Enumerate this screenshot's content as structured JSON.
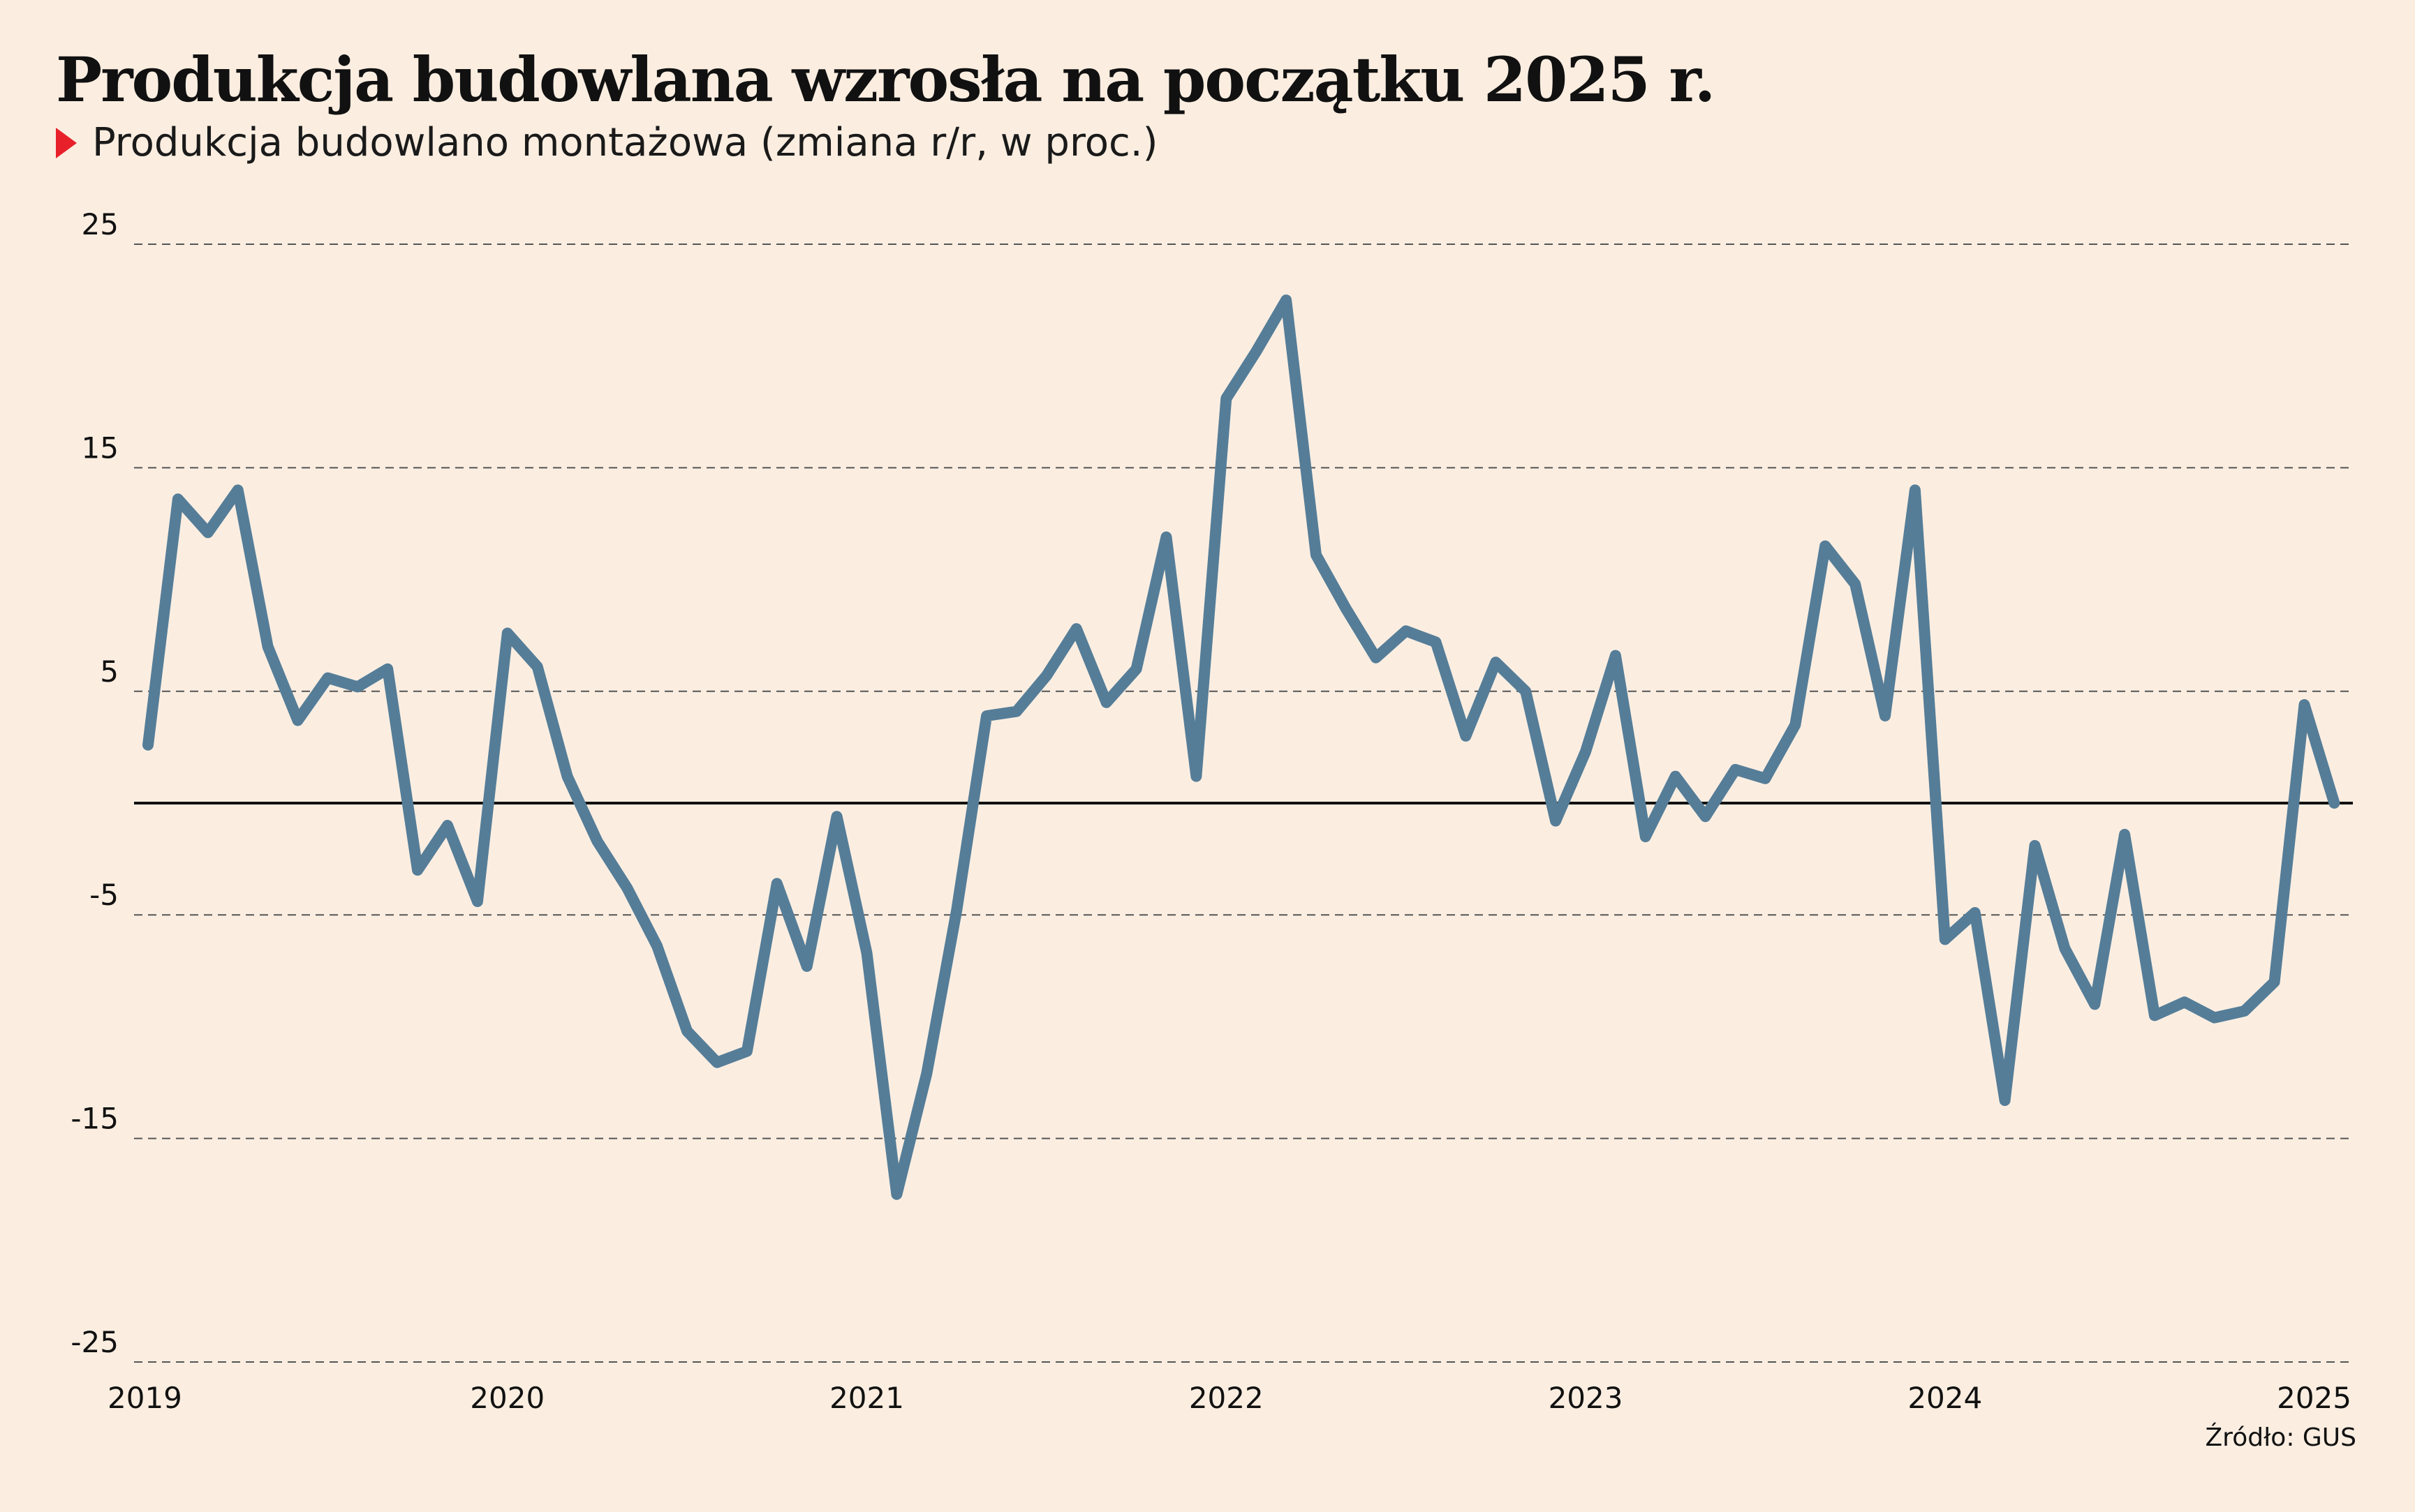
{
  "chart_data": {
    "type": "line",
    "title": "Produkcja budowlana wzrosła na początku 2025 r.",
    "subtitle": "Produkcja budowlano montażowa (zmiana r/r, w proc.)",
    "source": "Źródło: GUS",
    "ylim": [
      -25,
      25
    ],
    "yticks": [
      25,
      15,
      5,
      -5,
      -15,
      -25
    ],
    "ytick_labels": [
      "25",
      "15",
      "5",
      "-5",
      "-15",
      "-25"
    ],
    "xlim": [
      2019,
      2025.1
    ],
    "xticks": [
      2019,
      2020,
      2021,
      2022,
      2023,
      2024,
      2025
    ],
    "xtick_labels": [
      "2019",
      "2020",
      "2021",
      "2022",
      "2023",
      "2024",
      "2025"
    ],
    "grid": true,
    "zero_line": true,
    "series_color": "#557d98",
    "series": [
      {
        "values": [
          2.6,
          13.6,
          12.1,
          14.0,
          7.0,
          3.7,
          5.6,
          5.2,
          6.0,
          -3.0,
          -1.0,
          -4.4,
          7.6,
          6.1,
          1.2,
          -1.7,
          -3.8,
          -6.4,
          -10.2,
          -11.6,
          -11.1,
          -3.6,
          -7.3,
          -0.6,
          -6.7,
          -17.5,
          -12.1,
          -4.8,
          3.9,
          4.1,
          5.7,
          7.8,
          4.5,
          6.0,
          11.9,
          1.2,
          18.1,
          20.2,
          22.5,
          11.1,
          8.7,
          6.5,
          7.7,
          7.2,
          3.0,
          6.3,
          5.0,
          -0.8,
          2.3,
          6.6,
          -1.5,
          1.2,
          -0.6,
          1.5,
          1.1,
          3.5,
          11.5,
          9.8,
          3.9,
          14.0,
          -6.1,
          -4.9,
          -13.3,
          -1.9,
          -6.5,
          -9.0,
          -1.4,
          -9.5,
          -8.9,
          -9.6,
          -9.3,
          -8.0,
          4.4,
          0.0
        ]
      }
    ]
  }
}
